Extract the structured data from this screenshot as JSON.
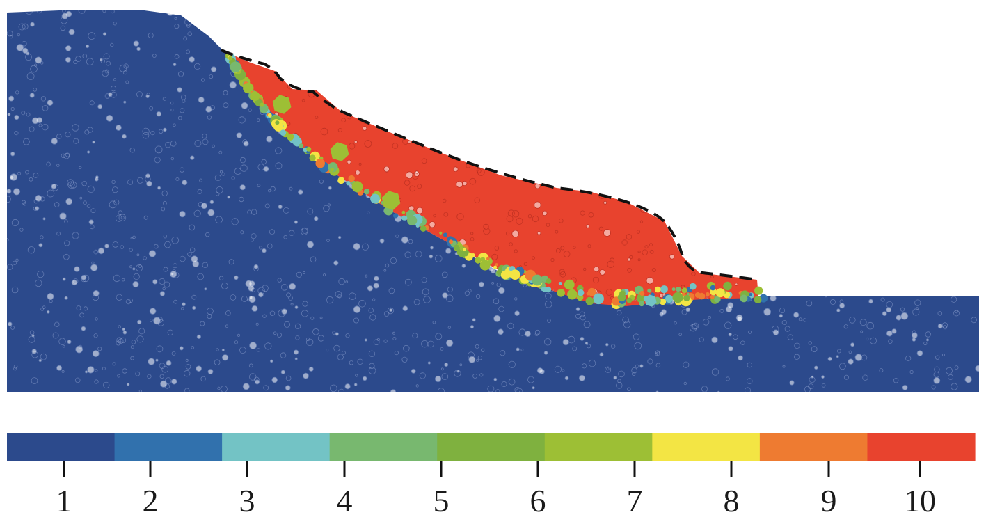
{
  "palette": {
    "background": "#ffffff",
    "outline_stroke": "#111111",
    "class_colors": [
      "#2c4a8c",
      "#3171ad",
      "#73c3c5",
      "#78b86f",
      "#7fb13f",
      "#9dbf35",
      "#f3e544",
      "#ee7b31",
      "#e8432e"
    ],
    "stable_mass": "#2c4a8c",
    "sliding_mass": "#e8432e"
  },
  "colorbar": {
    "tick_labels": [
      "1",
      "2",
      "3",
      "4",
      "5",
      "6",
      "7",
      "8",
      "9",
      "10"
    ]
  },
  "particle_field": {
    "particle_shape": "polygon-and-circle",
    "stable_class": 1,
    "sliding_class": 10,
    "transition_classes": [
      2,
      3,
      4,
      5,
      6,
      7,
      8,
      9
    ]
  },
  "annotations": {
    "sliding_boundary_style": "dashed"
  }
}
